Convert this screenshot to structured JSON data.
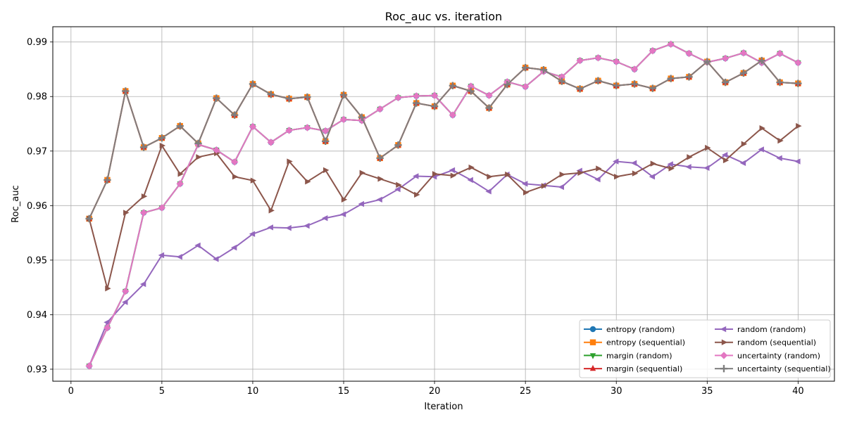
{
  "chart_data": {
    "type": "line",
    "title": "Roc_auc vs. iteration",
    "xlabel": "Iteration",
    "ylabel": "Roc_auc",
    "xlim": [
      -1,
      42
    ],
    "ylim": [
      0.9278,
      0.9928
    ],
    "xticks": [
      0,
      5,
      10,
      15,
      20,
      25,
      30,
      35,
      40
    ],
    "yticks": [
      0.93,
      0.94,
      0.95,
      0.96,
      0.97,
      0.98,
      0.99
    ],
    "grid": true,
    "legend_position": "lower-right",
    "legend_columns": 2,
    "x": [
      1,
      2,
      3,
      4,
      5,
      6,
      7,
      8,
      9,
      10,
      11,
      12,
      13,
      14,
      15,
      16,
      17,
      18,
      19,
      20,
      21,
      22,
      23,
      24,
      25,
      26,
      27,
      28,
      29,
      30,
      31,
      32,
      33,
      34,
      35,
      36,
      37,
      38,
      39,
      40
    ],
    "series": [
      {
        "name": "entropy (random)",
        "color": "#1f77b4",
        "marker": "circle",
        "values": [
          0.9306,
          0.9376,
          0.9443,
          0.9587,
          0.9596,
          0.964,
          0.9712,
          0.9702,
          0.968,
          0.9745,
          0.9716,
          0.9738,
          0.9743,
          0.9737,
          0.9758,
          0.9756,
          0.9777,
          0.9798,
          0.9801,
          0.9802,
          0.9766,
          0.9819,
          0.9802,
          0.9827,
          0.9818,
          0.9846,
          0.9836,
          0.9866,
          0.9871,
          0.9864,
          0.985,
          0.9884,
          0.9896,
          0.9879,
          0.9863,
          0.987,
          0.988,
          0.9862,
          0.9879,
          0.9862
        ]
      },
      {
        "name": "entropy (sequential)",
        "color": "#ff7f0e",
        "marker": "square",
        "values": [
          0.9576,
          0.9647,
          0.981,
          0.9707,
          0.9724,
          0.9746,
          0.9714,
          0.9797,
          0.9766,
          0.9823,
          0.9804,
          0.9796,
          0.9799,
          0.9718,
          0.9803,
          0.9762,
          0.9687,
          0.9711,
          0.9788,
          0.9782,
          0.982,
          0.981,
          0.9779,
          0.9822,
          0.9853,
          0.9849,
          0.9828,
          0.9814,
          0.9829,
          0.982,
          0.9823,
          0.9815,
          0.9833,
          0.9836,
          0.9864,
          0.9826,
          0.9843,
          0.9866,
          0.9826,
          0.9824
        ]
      },
      {
        "name": "margin (random)",
        "color": "#2ca02c",
        "marker": "triangle-down",
        "values": [
          0.9306,
          0.9376,
          0.9443,
          0.9587,
          0.9596,
          0.964,
          0.9712,
          0.9702,
          0.968,
          0.9745,
          0.9716,
          0.9738,
          0.9743,
          0.9737,
          0.9758,
          0.9756,
          0.9777,
          0.9798,
          0.9801,
          0.9802,
          0.9766,
          0.9819,
          0.9802,
          0.9827,
          0.9818,
          0.9846,
          0.9836,
          0.9866,
          0.9871,
          0.9864,
          0.985,
          0.9884,
          0.9896,
          0.9879,
          0.9863,
          0.987,
          0.988,
          0.9862,
          0.9879,
          0.9862
        ]
      },
      {
        "name": "margin (sequential)",
        "color": "#d62728",
        "marker": "triangle-up",
        "values": [
          0.9576,
          0.9647,
          0.981,
          0.9707,
          0.9724,
          0.9746,
          0.9714,
          0.9797,
          0.9766,
          0.9823,
          0.9804,
          0.9796,
          0.9799,
          0.9718,
          0.9803,
          0.9762,
          0.9687,
          0.9711,
          0.9788,
          0.9782,
          0.982,
          0.981,
          0.9779,
          0.9822,
          0.9853,
          0.9849,
          0.9828,
          0.9814,
          0.9829,
          0.982,
          0.9823,
          0.9815,
          0.9833,
          0.9836,
          0.9864,
          0.9826,
          0.9843,
          0.9866,
          0.9826,
          0.9824
        ]
      },
      {
        "name": "random (random)",
        "color": "#9467bd",
        "marker": "triangle-left",
        "values": [
          0.9306,
          0.9386,
          0.9423,
          0.9456,
          0.9509,
          0.9506,
          0.9527,
          0.9502,
          0.9523,
          0.9548,
          0.956,
          0.9559,
          0.9563,
          0.9577,
          0.9584,
          0.9603,
          0.9611,
          0.963,
          0.9654,
          0.9653,
          0.9665,
          0.9647,
          0.9626,
          0.9657,
          0.964,
          0.9637,
          0.9634,
          0.9664,
          0.9648,
          0.9681,
          0.9678,
          0.9653,
          0.9676,
          0.9671,
          0.9669,
          0.9693,
          0.9678,
          0.9703,
          0.9687,
          0.9681
        ]
      },
      {
        "name": "random (sequential)",
        "color": "#8c564b",
        "marker": "triangle-right",
        "values": [
          0.9576,
          0.9448,
          0.9587,
          0.9617,
          0.971,
          0.9658,
          0.9689,
          0.9696,
          0.9653,
          0.9646,
          0.9591,
          0.9681,
          0.9644,
          0.9665,
          0.9611,
          0.966,
          0.9649,
          0.9638,
          0.962,
          0.9658,
          0.9655,
          0.967,
          0.9653,
          0.9657,
          0.9624,
          0.9636,
          0.9657,
          0.966,
          0.9668,
          0.9653,
          0.9659,
          0.9677,
          0.9668,
          0.9689,
          0.9706,
          0.9683,
          0.9713,
          0.9742,
          0.9719,
          0.9746
        ]
      },
      {
        "name": "uncertainty (random)",
        "color": "#e377c2",
        "marker": "diamond",
        "values": [
          0.9306,
          0.9376,
          0.9443,
          0.9587,
          0.9596,
          0.964,
          0.9712,
          0.9702,
          0.968,
          0.9745,
          0.9716,
          0.9738,
          0.9743,
          0.9737,
          0.9758,
          0.9756,
          0.9777,
          0.9798,
          0.9801,
          0.9802,
          0.9766,
          0.9819,
          0.9802,
          0.9827,
          0.9818,
          0.9846,
          0.9836,
          0.9866,
          0.9871,
          0.9864,
          0.985,
          0.9884,
          0.9896,
          0.9879,
          0.9863,
          0.987,
          0.988,
          0.9862,
          0.9879,
          0.9862
        ]
      },
      {
        "name": "uncertainty (sequential)",
        "color": "#7f7f7f",
        "marker": "plus",
        "values": [
          0.9576,
          0.9647,
          0.981,
          0.9707,
          0.9724,
          0.9746,
          0.9714,
          0.9797,
          0.9766,
          0.9823,
          0.9804,
          0.9796,
          0.9799,
          0.9718,
          0.9803,
          0.9762,
          0.9687,
          0.9711,
          0.9788,
          0.9782,
          0.982,
          0.981,
          0.9779,
          0.9822,
          0.9853,
          0.9849,
          0.9828,
          0.9814,
          0.9829,
          0.982,
          0.9823,
          0.9815,
          0.9833,
          0.9836,
          0.9864,
          0.9826,
          0.9843,
          0.9866,
          0.9826,
          0.9824
        ]
      }
    ]
  }
}
